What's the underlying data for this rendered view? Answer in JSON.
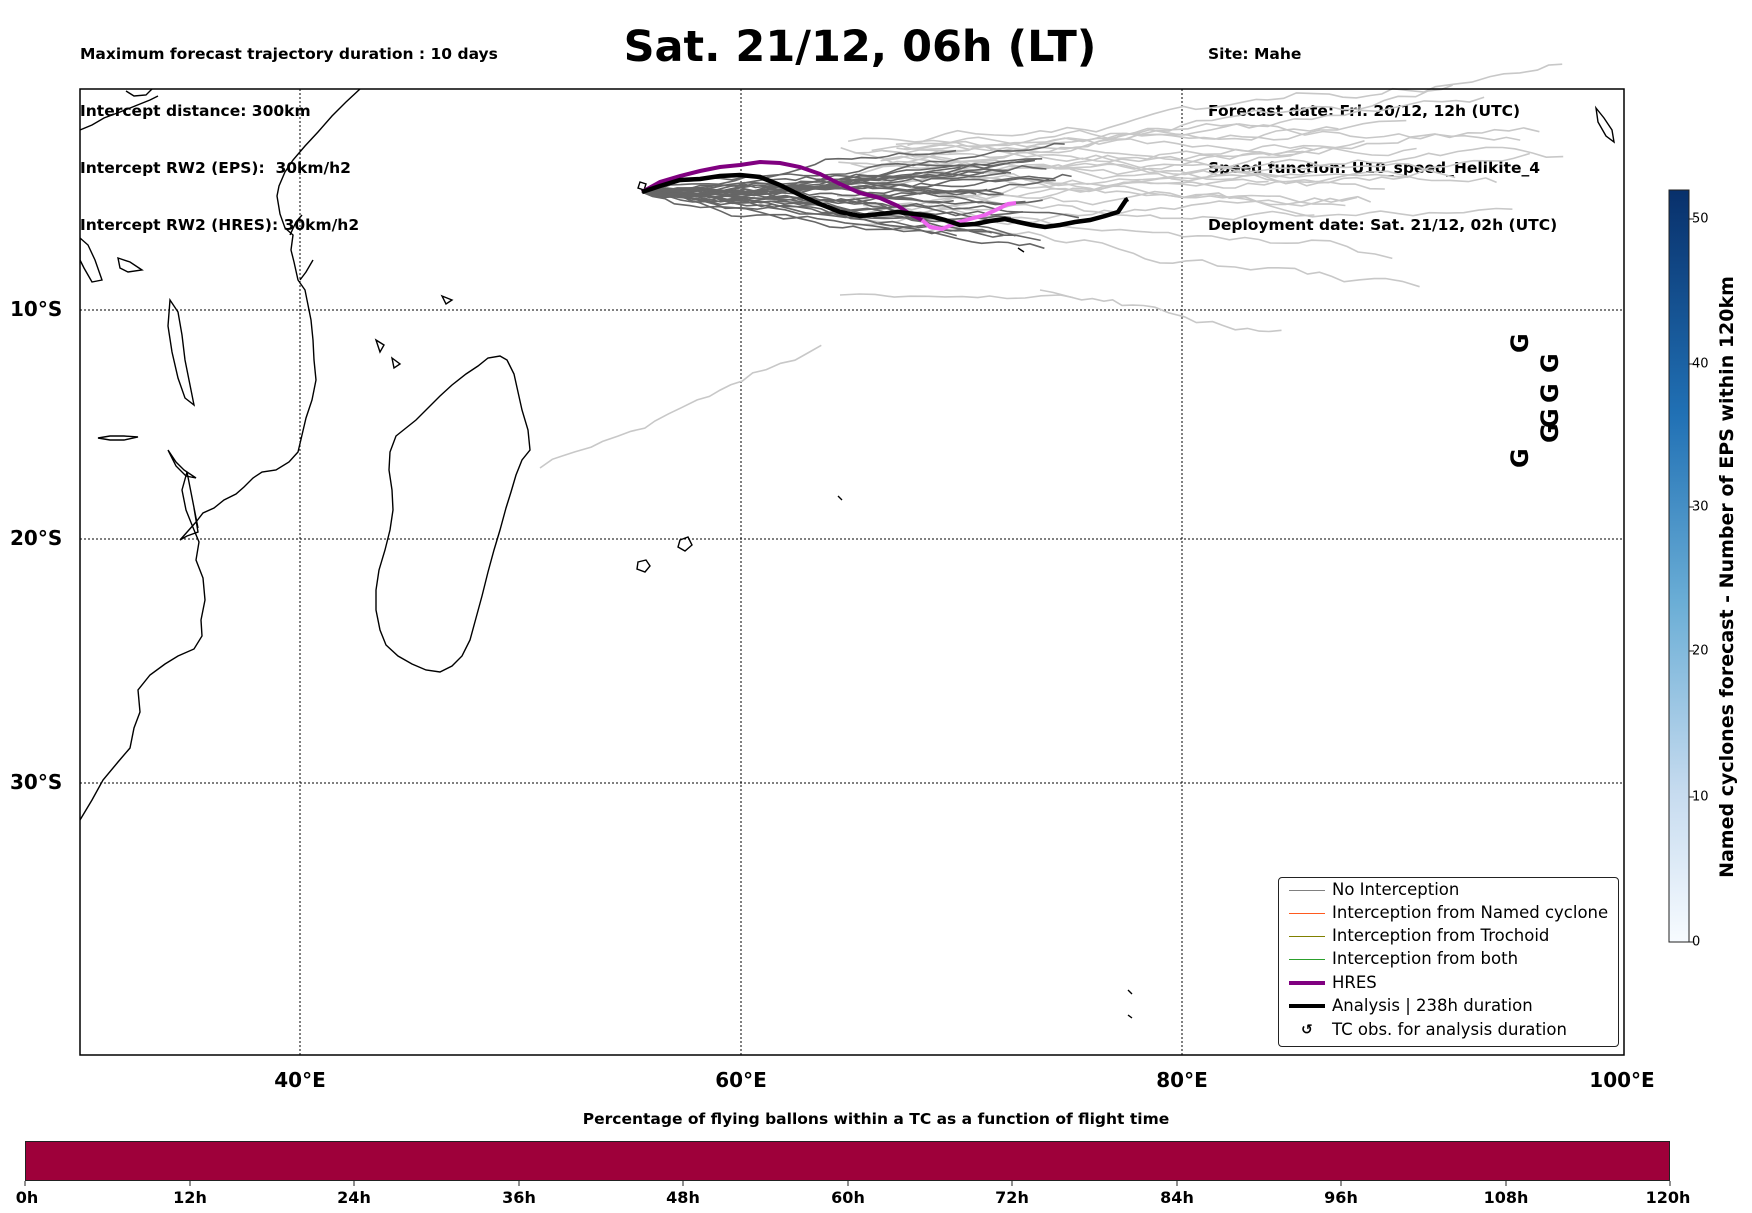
{
  "header_left": {
    "line1": "Maximum forecast trajectory duration : 10 days",
    "line2": "Intercept distance: 300km",
    "line3": "Intercept RW2 (EPS):  30km/h2",
    "line4": "Intercept RW2 (HRES): 30km/h2"
  },
  "title": "Sat. 21/12, 06h (LT)",
  "header_right": {
    "line1": "Site: Mahe",
    "line2": "Forecast date: Fri. 20/12, 12h (UTC)",
    "line3": "Speed function: U10_speed_Helikite_4",
    "line4": "Deployment date: Sat. 21/12, 02h (UTC)"
  },
  "map": {
    "lat_labels": [
      "10°S",
      "20°S",
      "30°S"
    ],
    "lon_labels": [
      "40°E",
      "60°E",
      "80°E",
      "100°E"
    ],
    "gridlines": true
  },
  "legend": {
    "items": [
      {
        "label": "No Interception",
        "color": "#808080"
      },
      {
        "label": "Interception from Named cyclone",
        "color": "#ff5a1f"
      },
      {
        "label": "Interception from Trochoid",
        "color": "#808000"
      },
      {
        "label": "Interception from both",
        "color": "#2ca02c"
      },
      {
        "label": "HRES",
        "color": "#800080"
      },
      {
        "label": "Analysis | 238h duration",
        "color": "#000000"
      },
      {
        "label": "TC obs. for analysis duration",
        "color": "#000000",
        "icon": "tc-symbol-icon"
      }
    ]
  },
  "colorbar_vertical": {
    "title": "Named cyclones forecast - Number of EPS within 120km",
    "ticks": [
      "0",
      "10",
      "20",
      "30",
      "40",
      "50"
    ],
    "min_color": "#f7fbff",
    "max_color": "#08306b"
  },
  "colorbar_horizontal": {
    "title": "Percentage of flying ballons within a TC as a function of flight time",
    "ticks": [
      "0h",
      "12h",
      "24h",
      "36h",
      "48h",
      "60h",
      "72h",
      "84h",
      "96h",
      "108h",
      "120h"
    ],
    "fill_color": "#9e003a"
  },
  "colors": {
    "hres": "#800080",
    "hres_tail": "#ee66ee",
    "analysis": "#000000",
    "eps_dark": "#666666",
    "eps_light": "#c8c8c8"
  }
}
